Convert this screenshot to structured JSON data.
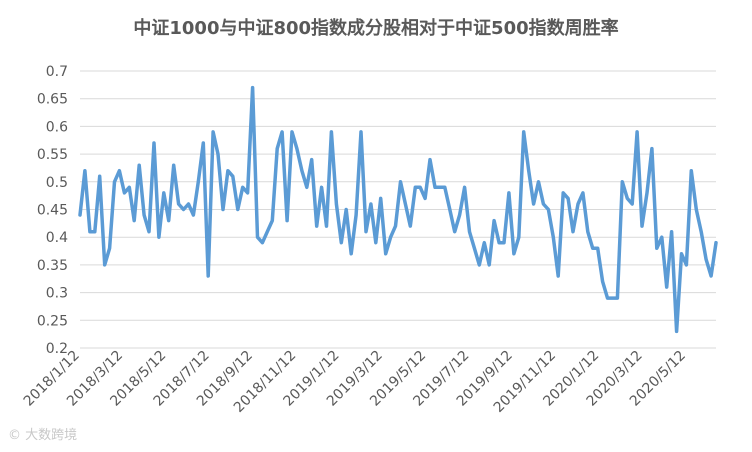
{
  "chart_data": {
    "type": "line",
    "title": "中证1000与中证800指数成分股相对于中证500指数周胜率",
    "xlabel": "",
    "ylabel": "",
    "ylim": [
      0.2,
      0.7
    ],
    "yticks": [
      "0.2",
      "0.25",
      "0.3",
      "0.35",
      "0.4",
      "0.45",
      "0.5",
      "0.55",
      "0.6",
      "0.65",
      "0.7"
    ],
    "xtick_labels": [
      "2018/1/12",
      "2018/3/12",
      "2018/5/12",
      "2018/7/12",
      "2018/9/12",
      "2018/11/12",
      "2019/1/12",
      "2019/3/12",
      "2019/5/12",
      "2019/7/12",
      "2019/9/12",
      "2019/11/12",
      "2020/1/12",
      "2020/3/12",
      "2020/5/12"
    ],
    "grid": true,
    "legend": "none",
    "color": "#5b9bd5",
    "series": [
      {
        "values": [
          0.44,
          0.52,
          0.41,
          0.41,
          0.51,
          0.35,
          0.38,
          0.5,
          0.52,
          0.48,
          0.49,
          0.43,
          0.53,
          0.44,
          0.41,
          0.57,
          0.4,
          0.48,
          0.43,
          0.53,
          0.46,
          0.45,
          0.46,
          0.44,
          0.5,
          0.57,
          0.33,
          0.59,
          0.55,
          0.45,
          0.52,
          0.51,
          0.45,
          0.49,
          0.48,
          0.67,
          0.4,
          0.39,
          0.41,
          0.43,
          0.56,
          0.59,
          0.43,
          0.59,
          0.56,
          0.52,
          0.49,
          0.54,
          0.42,
          0.49,
          0.42,
          0.59,
          0.46,
          0.39,
          0.45,
          0.37,
          0.44,
          0.59,
          0.41,
          0.46,
          0.39,
          0.47,
          0.37,
          0.4,
          0.42,
          0.5,
          0.46,
          0.42,
          0.49,
          0.49,
          0.47,
          0.54,
          0.49,
          0.49,
          0.49,
          0.45,
          0.41,
          0.44,
          0.49,
          0.41,
          0.38,
          0.35,
          0.39,
          0.35,
          0.43,
          0.39,
          0.39,
          0.48,
          0.37,
          0.4,
          0.59,
          0.52,
          0.46,
          0.5,
          0.46,
          0.45,
          0.4,
          0.33,
          0.48,
          0.47,
          0.41,
          0.46,
          0.48,
          0.41,
          0.38,
          0.38,
          0.32,
          0.29,
          0.29,
          0.29,
          0.5,
          0.47,
          0.46,
          0.59,
          0.42,
          0.48,
          0.56,
          0.38,
          0.4,
          0.31,
          0.41,
          0.23,
          0.37,
          0.35,
          0.52,
          0.45,
          0.41,
          0.36,
          0.33,
          0.39
        ]
      }
    ]
  },
  "watermark": "© 大数跨境"
}
